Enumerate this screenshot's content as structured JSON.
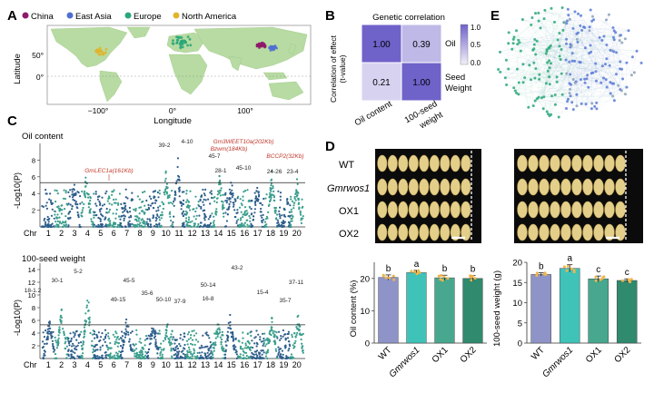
{
  "panelA": {
    "letter": "A",
    "legend": [
      {
        "label": "China",
        "color": "#8e1a6a"
      },
      {
        "label": "East Asia",
        "color": "#4f6fd0"
      },
      {
        "label": "Europe",
        "color": "#2aa779"
      },
      {
        "label": "North America",
        "color": "#e0b52d"
      }
    ],
    "ylabel": "Latitude",
    "xlabel": "Longitude",
    "yticks": [
      "50°",
      "0°"
    ],
    "xticks": [
      "−100°",
      "0°",
      "100°"
    ],
    "land_color": "#b7dba2",
    "sea_color": "#ffffff"
  },
  "panelB": {
    "letter": "B",
    "title": "Genetic correlation",
    "ylabel_line1": "Correlation of effect",
    "ylabel_line2": "(t-value)",
    "cells": [
      "1.00",
      "0.39",
      "0.21",
      "1.00"
    ],
    "cell_values": [
      1.0,
      0.39,
      0.21,
      1.0
    ],
    "row_labels": [
      "Oil",
      "Seed",
      "Weight"
    ],
    "col_labels": [
      "Oil content",
      "100-seed",
      "weight"
    ],
    "colorbar_ticks": [
      "1.0",
      "0.5",
      "0.0"
    ],
    "colorbar_range": [
      0.0,
      1.0
    ]
  },
  "panelC": {
    "letter": "C",
    "plots": [
      {
        "title": "Oil content",
        "ylabel": "-Log10(P)",
        "yticks": [
          "8",
          "6",
          "4",
          "2"
        ],
        "ymax": 10,
        "threshold": 5.3,
        "peak_labels": [
          {
            "text": "39-2",
            "color": "#222222"
          },
          {
            "text": "4-10",
            "color": "#222222"
          },
          {
            "text": "45-7",
            "color": "#222222"
          },
          {
            "text": "28-1",
            "color": "#222222"
          },
          {
            "text": "45-10",
            "color": "#222222"
          },
          {
            "text": "24-26",
            "color": "#222222"
          },
          {
            "text": "23-4",
            "color": "#222222"
          }
        ],
        "gene_labels": [
          {
            "text": "GmLEC1a(161Kb)",
            "color": "#c0392b"
          },
          {
            "text": "Gm3WEET10a(202Kb)",
            "color": "#c0392b"
          },
          {
            "text": "Bzwm(184Kb)",
            "color": "#c0392b"
          },
          {
            "text": "BCCP2(32Kb)",
            "color": "#c0392b"
          }
        ]
      },
      {
        "title": "100-seed weight",
        "ylabel": "-Log10(P)",
        "yticks": [
          "14",
          "12",
          "10",
          "8",
          "6",
          "4",
          "2"
        ],
        "ymax": 15,
        "threshold": 5.3,
        "peak_labels": [
          {
            "text": "30-1",
            "color": "#222222"
          },
          {
            "text": "18-1.2",
            "color": "#222222"
          },
          {
            "text": "5-2",
            "color": "#222222"
          },
          {
            "text": "45-5",
            "color": "#222222"
          },
          {
            "text": "49-15",
            "color": "#222222"
          },
          {
            "text": "35-6",
            "color": "#222222"
          },
          {
            "text": "50-10",
            "color": "#222222"
          },
          {
            "text": "37-9",
            "color": "#222222"
          },
          {
            "text": "50-14",
            "color": "#222222"
          },
          {
            "text": "16-8",
            "color": "#222222"
          },
          {
            "text": "43-2",
            "color": "#222222"
          },
          {
            "text": "15-4",
            "color": "#222222"
          },
          {
            "text": "35-7",
            "color": "#222222"
          },
          {
            "text": "37-11",
            "color": "#222222"
          }
        ]
      }
    ],
    "chr_label": "Chr",
    "chromosomes": [
      "1",
      "2",
      "3",
      "4",
      "5",
      "6",
      "7",
      "8",
      "9",
      "10",
      "11",
      "12",
      "13",
      "14",
      "15",
      "16",
      "17",
      "18",
      "19",
      "20"
    ],
    "colors": {
      "dark": "#2e5e8c",
      "light": "#3a9e8c"
    }
  },
  "panelD": {
    "letter": "D",
    "row_labels": [
      "WT",
      "Gmrwos1",
      "OX1",
      "OX2"
    ],
    "charts": [
      {
        "ylabel": "Oil content (%)",
        "yticks": [
          "20",
          "10",
          "0"
        ],
        "ymax": 25
      },
      {
        "ylabel": "100-seed weight (g)",
        "yticks": [
          "20",
          "15",
          "10",
          "5",
          "0"
        ],
        "ymax": 20
      }
    ]
  },
  "panelE": {
    "letter": "E",
    "colors": {
      "green": "#2aa779",
      "blue": "#5a7ad6",
      "gray": "#8aa0b8"
    }
  },
  "chart_data": [
    {
      "type": "bar",
      "categories": [
        "WT",
        "Gmrwos1",
        "OX1",
        "OX2"
      ],
      "values": [
        20.3,
        21.8,
        20.2,
        20.0
      ],
      "errors": [
        0.8,
        0.7,
        0.8,
        0.9
      ],
      "letters": [
        "b",
        "a",
        "b",
        "b"
      ],
      "ylabel": "Oil content (%)",
      "ylim": [
        0,
        25
      ],
      "colors": [
        "#8e94c8",
        "#3fc3b9",
        "#47a88f",
        "#2f8a6e"
      ]
    },
    {
      "type": "bar",
      "categories": [
        "WT",
        "Gmrwos1",
        "OX1",
        "OX2"
      ],
      "values": [
        17.0,
        18.5,
        15.9,
        15.5
      ],
      "errors": [
        0.4,
        0.9,
        0.7,
        0.4
      ],
      "letters": [
        "b",
        "a",
        "c",
        "c"
      ],
      "ylabel": "100-seed weight (g)",
      "ylim": [
        0,
        20
      ],
      "colors": [
        "#8e94c8",
        "#3fc3b9",
        "#47a88f",
        "#2f8a6e"
      ]
    }
  ]
}
